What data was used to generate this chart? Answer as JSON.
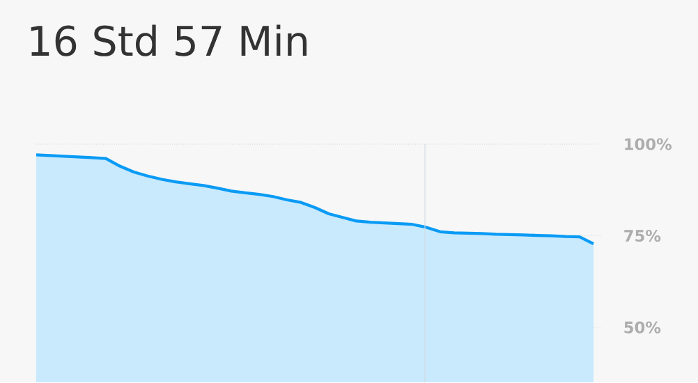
{
  "chart_data": {
    "type": "area",
    "title": "16 Std 57 Min",
    "categories": [
      null,
      null,
      null,
      null,
      null,
      null,
      null,
      null,
      null,
      null,
      null,
      null,
      null,
      null,
      null,
      null,
      null,
      null,
      null,
      null,
      null,
      null,
      null,
      null,
      null,
      null,
      null,
      null,
      null,
      null,
      null,
      null,
      null,
      null,
      null,
      null,
      null,
      null,
      null,
      null,
      null
    ],
    "series": [
      {
        "color": "#0a9bf5",
        "values": [
          97.1,
          96.9,
          96.7,
          96.5,
          96.3,
          96.1,
          94.0,
          92.4,
          91.3,
          90.4,
          89.7,
          89.2,
          88.7,
          88.0,
          87.2,
          86.7,
          86.3,
          85.7,
          84.8,
          84.1,
          82.7,
          81.0,
          80.0,
          79.0,
          78.7,
          78.5,
          78.3,
          78.1,
          77.3,
          76.1,
          75.8,
          75.7,
          75.6,
          75.4,
          75.3,
          75.2,
          75.1,
          75.0,
          74.8,
          74.7,
          72.8
        ]
      }
    ],
    "ylim": [
      35,
      100
    ],
    "yticks": [
      {
        "value": 50,
        "label": "50%"
      },
      {
        "value": 75,
        "label": "75%"
      },
      {
        "value": 100,
        "label": "100%"
      }
    ],
    "grid": "y",
    "tick_labels": "y"
  }
}
